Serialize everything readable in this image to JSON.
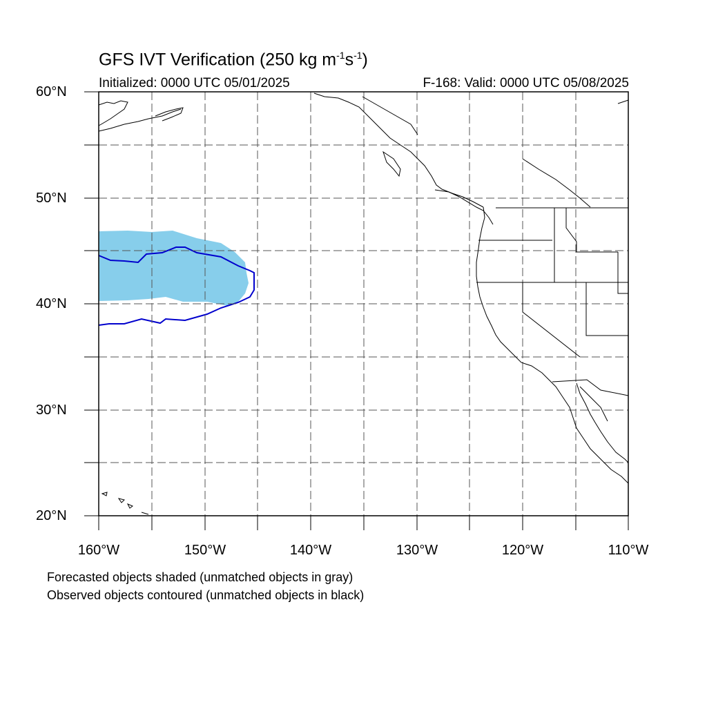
{
  "title": {
    "main": "GFS IVT Verification (250 kg m",
    "exp1": "-1",
    "mid": "s",
    "exp2": "-1",
    "end": ")"
  },
  "initialized": "Initialized: 0000 UTC 05/01/2025",
  "valid": "F-168: Valid: 0000 UTC 05/08/2025",
  "lat_labels": [
    "60°N",
    "50°N",
    "40°N",
    "30°N",
    "20°N"
  ],
  "lon_labels": [
    "160°W",
    "150°W",
    "140°W",
    "130°W",
    "120°W",
    "110°W"
  ],
  "notes": [
    "Forecasted objects shaded (unmatched objects in gray)",
    "Observed objects contoured (unmatched objects in black)"
  ],
  "colors": {
    "forecast_fill": "#87ceeb",
    "observed_contour": "#0000cd",
    "coastline": "#000000",
    "gridline": "#555555"
  }
}
